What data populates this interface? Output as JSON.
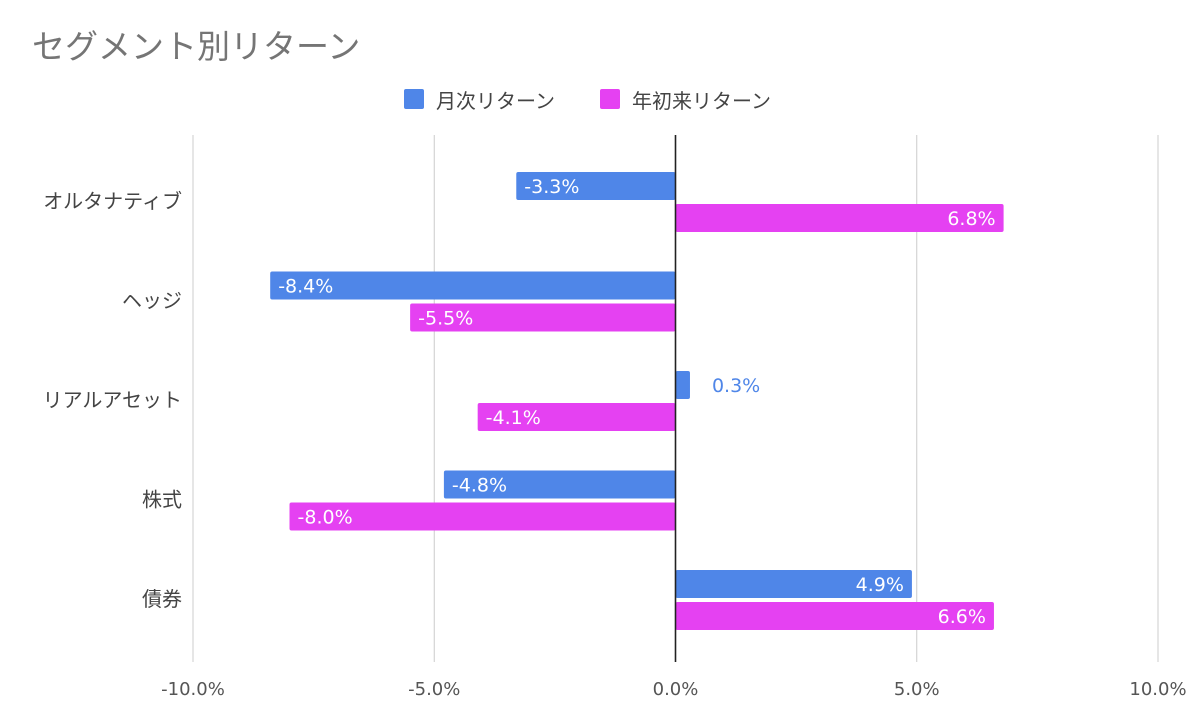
{
  "chart_data": {
    "type": "bar",
    "orientation": "horizontal",
    "title": "セグメント別リターン",
    "categories": [
      "オルタナティブ",
      "ヘッジ",
      "リアルアセット",
      "株式",
      "債券"
    ],
    "series": [
      {
        "name": "月次リターン",
        "color": "#4f86e8",
        "values": [
          -3.3,
          -8.4,
          0.3,
          -4.8,
          4.9
        ],
        "labels": [
          "-3.3%",
          "-8.4%",
          "0.3%",
          "-4.8%",
          "4.9%"
        ]
      },
      {
        "name": "年初来リターン",
        "color": "#e541f2",
        "values": [
          6.8,
          -5.5,
          -4.1,
          -8.0,
          6.6
        ],
        "labels": [
          "6.8%",
          "-5.5%",
          "-4.1%",
          "-8.0%",
          "6.6%"
        ]
      }
    ],
    "xlim": [
      -10,
      10
    ],
    "xticks": [
      -10,
      -5,
      0,
      5,
      10
    ],
    "xtick_labels": [
      "-10.0%",
      "-5.0%",
      "0.0%",
      "5.0%",
      "10.0%"
    ],
    "grid": true,
    "legend_position": "top"
  }
}
